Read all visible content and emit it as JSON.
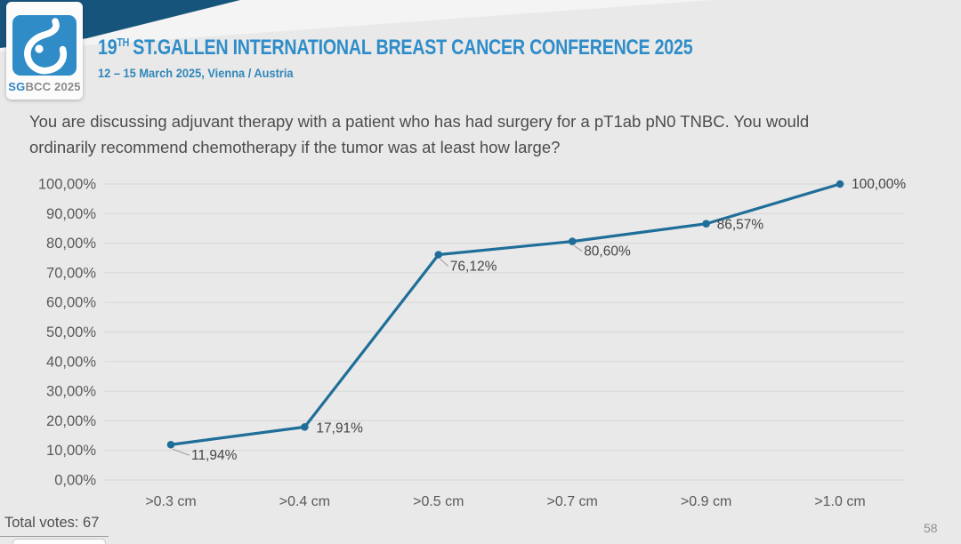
{
  "header": {
    "title_prefix": "19",
    "title_sup": "TH",
    "title_rest": "ST.GALLEN INTERNATIONAL BREAST CANCER CONFERENCE 2025",
    "subtitle": "12 – 15 March 2025, Vienna / Austria",
    "logo_sg": "SG",
    "logo_rest": "BCC 2025"
  },
  "question": "You are discussing adjuvant therapy with a patient who has had surgery for a pT1ab pN0 TNBC. You would ordinarily recommend chemotherapy if the tumor was at least how large?",
  "footer": {
    "total_votes": "Total votes: 67",
    "page_number": "58"
  },
  "colors": {
    "bg": "#e9e9e9",
    "navy": "#17547c",
    "accent_blue": "#2e8dc9",
    "line": "#1f6e99",
    "grid": "#d9d9d9",
    "axis_text": "#5a5a5a",
    "data_label": "#454545"
  },
  "chart_data": {
    "type": "line",
    "title": "",
    "xlabel": "",
    "ylabel": "",
    "categories": [
      ">0.3 cm",
      ">0.4 cm",
      ">0.5 cm",
      ">0.7 cm",
      ">0.9 cm",
      ">1.0 cm"
    ],
    "values": [
      11.94,
      17.91,
      76.12,
      80.6,
      86.57,
      100.0
    ],
    "value_labels": [
      "11,94%",
      "17,91%",
      "76,12%",
      "80,60%",
      "86,57%",
      "100,00%"
    ],
    "y_ticks": [
      "100,00%",
      "90,00%",
      "80,00%",
      "70,00%",
      "60,00%",
      "50,00%",
      "40,00%",
      "30,00%",
      "20,00%",
      "10,00%",
      "0,00%"
    ],
    "ylim": [
      0,
      100
    ],
    "grid": true,
    "legend": false
  }
}
